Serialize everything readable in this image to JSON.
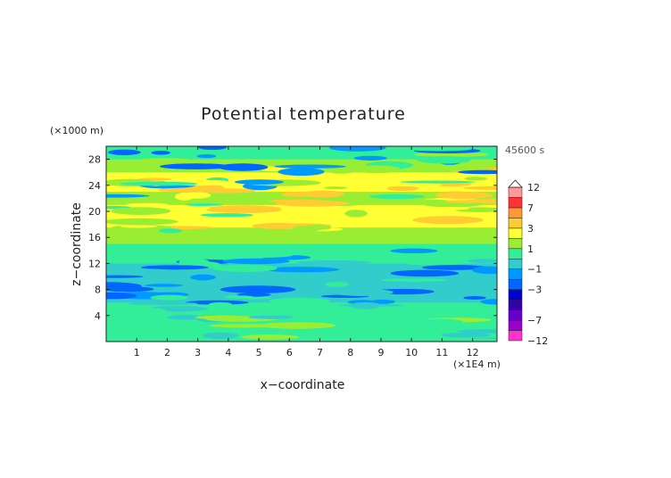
{
  "chart_data": {
    "type": "heatmap",
    "title": "Potential temperature",
    "xlabel": "x−coordinate",
    "ylabel": "z−coordinate",
    "x_unit": "(×1E4 m)",
    "y_unit": "(×1000 m)",
    "time_label": "45600 s",
    "xlim": [
      0,
      12.8
    ],
    "ylim": [
      0,
      30
    ],
    "x_ticks": [
      1,
      2,
      3,
      4,
      5,
      6,
      7,
      8,
      9,
      10,
      11,
      12
    ],
    "y_ticks": [
      4,
      8,
      12,
      16,
      20,
      24,
      28
    ],
    "colorbar": {
      "levels": [
        -12,
        -9,
        -7,
        -5,
        -4,
        -3,
        -2,
        -1,
        0,
        1,
        2,
        3,
        5,
        7,
        9,
        12
      ],
      "colors": [
        "#ff33cc",
        "#9900cc",
        "#6600cc",
        "#3300aa",
        "#0000cc",
        "#0066ff",
        "#0099ff",
        "#33cccc",
        "#33ee99",
        "#99ee33",
        "#ffff33",
        "#ffcc33",
        "#ff9933",
        "#ff3333",
        "#ff9999"
      ],
      "tick_labels": [
        "12",
        "7",
        "3",
        "1",
        "−1",
        "−3",
        "−7",
        "−12"
      ],
      "tick_values": [
        12,
        7,
        3,
        1,
        -1,
        -3,
        -7,
        -12
      ]
    },
    "bands": [
      {
        "z": [
          0,
          2.5
        ],
        "value": 0.5
      },
      {
        "z": [
          2.5,
          6
        ],
        "value": 0.5
      },
      {
        "z": [
          6,
          12
        ],
        "value": -0.5
      },
      {
        "z": [
          12,
          15
        ],
        "value": 0.5
      },
      {
        "z": [
          15,
          17.5
        ],
        "value": 1.5
      },
      {
        "z": [
          17.5,
          21
        ],
        "value": 2.5
      },
      {
        "z": [
          21,
          23
        ],
        "value": 1.5
      },
      {
        "z": [
          23,
          26
        ],
        "value": 2.5
      },
      {
        "z": [
          26,
          28
        ],
        "value": 1.5
      },
      {
        "z": [
          28,
          30
        ],
        "value": 0.5
      }
    ]
  }
}
